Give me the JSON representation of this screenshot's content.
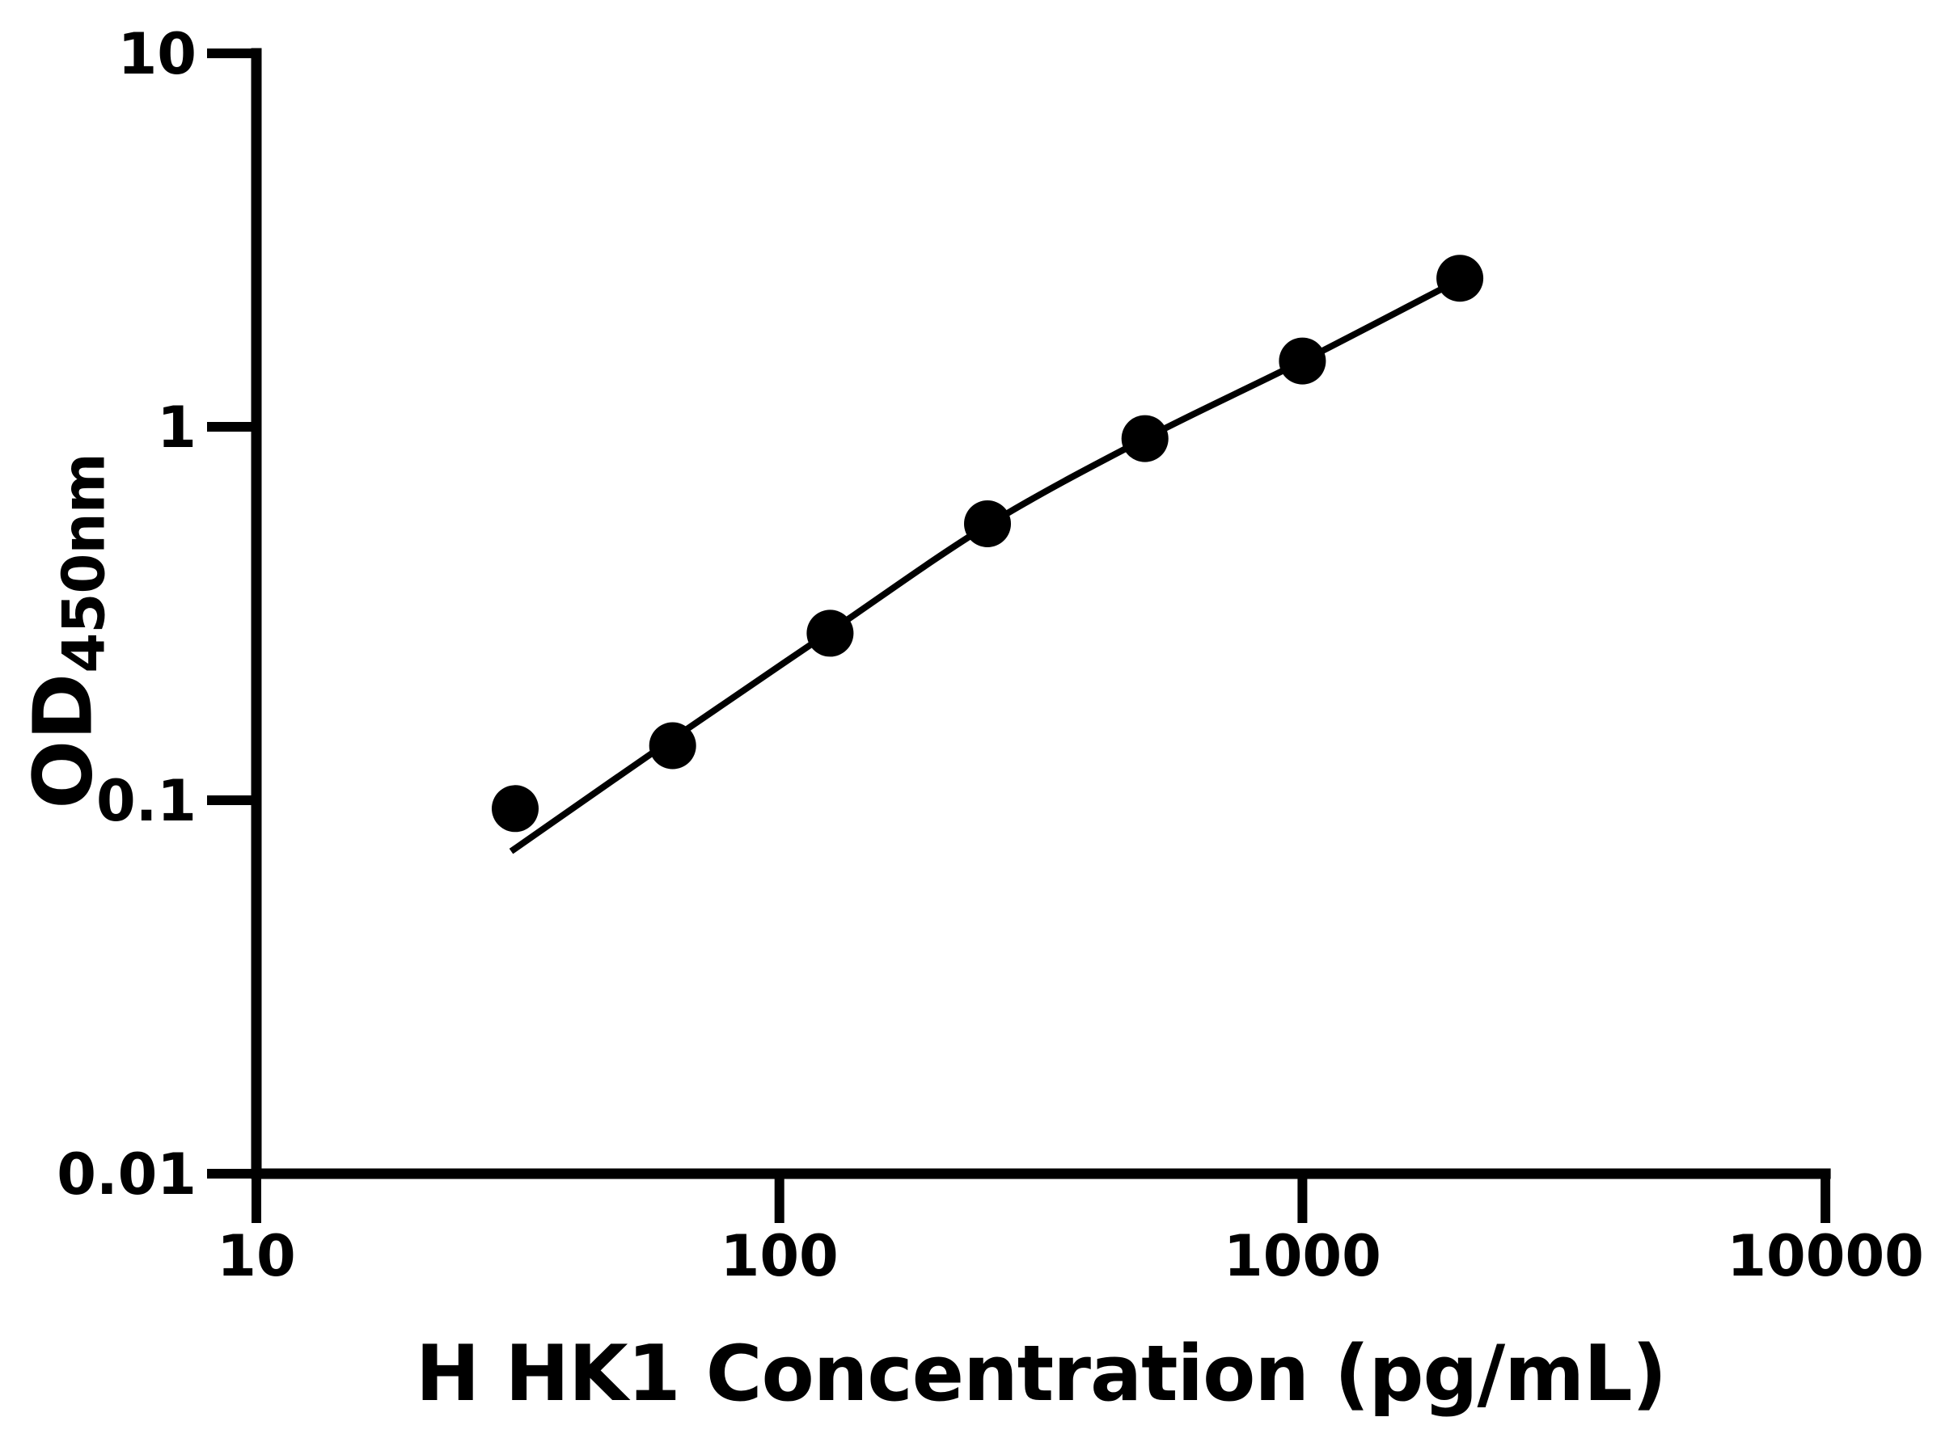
{
  "figure": {
    "background_color": "#ffffff",
    "ink_color": "#000000"
  },
  "chart_data": {
    "type": "scatter",
    "title": "",
    "xlabel": "H HK1 Concentration (pg/mL)",
    "ylabel_main": "OD",
    "ylabel_sub": "450nm",
    "x_scale": "log",
    "y_scale": "log",
    "xlim": [
      10,
      10000
    ],
    "ylim": [
      0.01,
      10
    ],
    "x_tick_values": [
      10,
      100,
      1000,
      10000
    ],
    "x_tick_labels": [
      "10",
      "100",
      "1000",
      "10000"
    ],
    "y_tick_values": [
      10,
      1,
      0.1,
      0.01
    ],
    "y_tick_labels": [
      "10",
      "1",
      "0.1",
      "0.01"
    ],
    "grid": "off",
    "legend": "none",
    "marker": "filled-circle",
    "marker_color": "#000000",
    "line_color": "#000000",
    "points": {
      "x": [
        31.25,
        62.5,
        125,
        250,
        500,
        1000,
        2000
      ],
      "od": [
        0.095,
        0.14,
        0.28,
        0.55,
        0.93,
        1.5,
        2.5
      ]
    },
    "fit_curve": {
      "x": [
        30.7,
        62.5,
        125,
        250,
        500,
        1000,
        2000
      ],
      "od": [
        0.073,
        0.146,
        0.283,
        0.545,
        0.93,
        1.5,
        2.48
      ]
    }
  }
}
